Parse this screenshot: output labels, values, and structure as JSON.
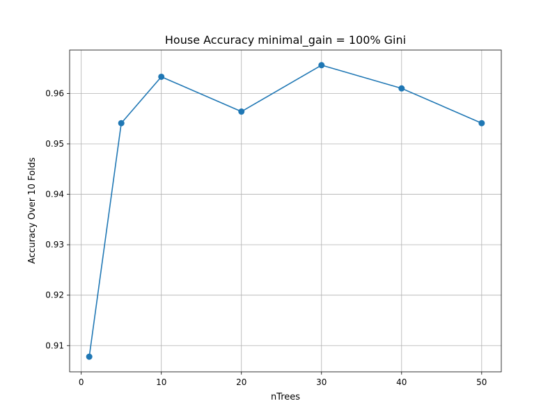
{
  "chart_data": {
    "type": "line",
    "title": "House Accuracy minimal_gain = 100% Gini",
    "xlabel": "nTrees",
    "ylabel": "Accuracy Over 10 Folds",
    "xlim": [
      -1.45,
      52.45
    ],
    "ylim": [
      0.9048,
      0.9686
    ],
    "xticks": [
      0,
      10,
      20,
      30,
      40,
      50
    ],
    "yticks": [
      0.91,
      0.92,
      0.93,
      0.94,
      0.95,
      0.96
    ],
    "xtick_labels": [
      "0",
      "10",
      "20",
      "30",
      "40",
      "50"
    ],
    "ytick_labels": [
      "0.91",
      "0.92",
      "0.93",
      "0.94",
      "0.95",
      "0.96"
    ],
    "grid": true,
    "legend": "none",
    "series": [
      {
        "x": [
          1,
          5,
          10,
          20,
          30,
          40,
          50
        ],
        "values": [
          0.9078,
          0.9541,
          0.9633,
          0.9564,
          0.9656,
          0.961,
          0.9541
        ],
        "color": "#1f77b4",
        "marker": "circle"
      }
    ]
  }
}
